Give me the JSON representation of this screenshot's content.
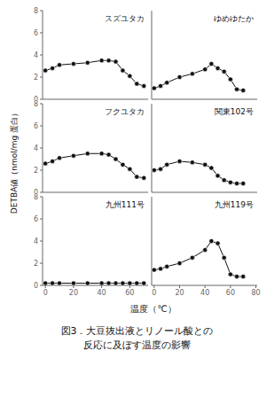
{
  "chart_data": [
    {
      "type": "line",
      "title": "スズユタカ",
      "x": [
        0,
        5,
        10,
        20,
        30,
        40,
        45,
        50,
        55,
        60,
        65,
        70
      ],
      "values": [
        2.6,
        2.8,
        3.1,
        3.2,
        3.3,
        3.5,
        3.5,
        3.4,
        2.6,
        2.1,
        1.4,
        1.2
      ],
      "color": "#111111",
      "marker": "o",
      "xlim": [
        -2,
        73
      ],
      "xticks": [
        0,
        20,
        40,
        60
      ],
      "ylim": [
        0,
        8
      ],
      "yticks": [
        0,
        2,
        4,
        6,
        8
      ],
      "tick_labels": "y"
    },
    {
      "type": "line",
      "title": "ゆめゆたか",
      "x": [
        0,
        5,
        10,
        20,
        30,
        40,
        45,
        50,
        55,
        60,
        65,
        70
      ],
      "values": [
        1.0,
        1.2,
        1.5,
        2.0,
        2.3,
        2.7,
        3.2,
        2.8,
        2.5,
        1.8,
        0.9,
        0.8
      ],
      "color": "#111111",
      "marker": "o",
      "xlim": [
        -2,
        81
      ],
      "xticks": [
        0,
        20,
        40,
        60,
        80
      ],
      "ylim": [
        0,
        8
      ],
      "yticks": [
        0,
        2,
        4,
        6,
        8
      ],
      "tick_labels": false
    },
    {
      "type": "line",
      "title": "フクユタカ",
      "x": [
        0,
        5,
        10,
        20,
        30,
        40,
        45,
        50,
        55,
        60,
        65,
        70
      ],
      "values": [
        2.6,
        2.8,
        3.1,
        3.3,
        3.5,
        3.5,
        3.4,
        3.0,
        2.5,
        2.1,
        1.4,
        1.3
      ],
      "color": "#111111",
      "marker": "o",
      "xlim": [
        -2,
        73
      ],
      "xticks": [
        0,
        20,
        40,
        60
      ],
      "ylim": [
        0,
        8
      ],
      "yticks": [
        0,
        2,
        4,
        6,
        8
      ],
      "tick_labels": "y"
    },
    {
      "type": "line",
      "title": "関東102号",
      "x": [
        0,
        5,
        10,
        20,
        30,
        40,
        45,
        50,
        55,
        60,
        65,
        70
      ],
      "values": [
        2.0,
        2.1,
        2.5,
        2.8,
        2.7,
        2.5,
        2.2,
        1.5,
        1.1,
        0.9,
        0.8,
        0.8
      ],
      "color": "#111111",
      "marker": "o",
      "xlim": [
        -2,
        81
      ],
      "xticks": [
        0,
        20,
        40,
        60,
        80
      ],
      "ylim": [
        0,
        8
      ],
      "yticks": [
        0,
        2,
        4,
        6,
        8
      ],
      "tick_labels": false
    },
    {
      "type": "line",
      "title": "九州111号",
      "x": [
        0,
        5,
        10,
        20,
        30,
        40,
        45,
        50,
        55,
        60,
        65,
        70
      ],
      "values": [
        0.2,
        0.2,
        0.2,
        0.2,
        0.2,
        0.2,
        0.2,
        0.2,
        0.2,
        0.2,
        0.2,
        0.2
      ],
      "color": "#111111",
      "marker": "o",
      "xlim": [
        -2,
        73
      ],
      "xticks": [
        0,
        20,
        40,
        60
      ],
      "ylim": [
        0,
        8
      ],
      "yticks": [
        0,
        2,
        4,
        6,
        8
      ],
      "tick_labels": true
    },
    {
      "type": "line",
      "title": "九州119号",
      "x": [
        0,
        5,
        10,
        20,
        30,
        40,
        45,
        50,
        55,
        60,
        65,
        70
      ],
      "values": [
        1.4,
        1.5,
        1.7,
        2.0,
        2.5,
        3.2,
        4.0,
        3.8,
        2.5,
        1.0,
        0.8,
        0.8
      ],
      "color": "#111111",
      "marker": "o",
      "xlim": [
        -2,
        81
      ],
      "xticks": [
        0,
        20,
        40,
        60,
        80
      ],
      "ylim": [
        0,
        8
      ],
      "yticks": [
        0,
        2,
        4,
        6,
        8
      ],
      "tick_labels": "x"
    }
  ],
  "ylabel": "DETBA値（nmol/mg 蛋白）",
  "xlabel": "温度（℃）",
  "annotations": [
    "図3．大豆抜出液とリノール酸との",
    "反応に及ぼす温度の影響"
  ]
}
